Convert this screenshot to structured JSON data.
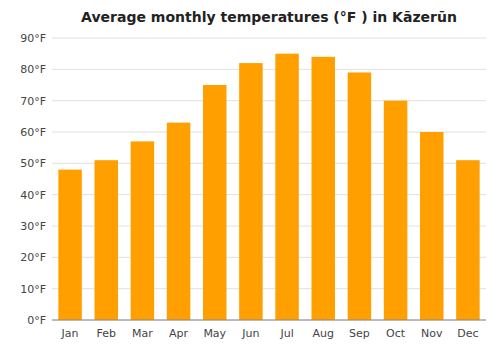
{
  "chart_data": {
    "type": "bar",
    "title": "Average monthly temperatures (°F ) in Kāzerūn",
    "categories": [
      "Jan",
      "Feb",
      "Mar",
      "Apr",
      "May",
      "Jun",
      "Jul",
      "Aug",
      "Sep",
      "Oct",
      "Nov",
      "Dec"
    ],
    "values": [
      48,
      51,
      57,
      63,
      75,
      82,
      85,
      84,
      79,
      70,
      60,
      51
    ],
    "color": "#ffa000",
    "ylim": [
      0,
      90
    ],
    "yticks": [
      {
        "value": 0,
        "label": "0°F"
      },
      {
        "value": 10,
        "label": "10°F"
      },
      {
        "value": 20,
        "label": "20°F"
      },
      {
        "value": 30,
        "label": "30°F"
      },
      {
        "value": 40,
        "label": "40°F"
      },
      {
        "value": 50,
        "label": "50°F"
      },
      {
        "value": 60,
        "label": "60°F"
      },
      {
        "value": 70,
        "label": "70°F"
      },
      {
        "value": 80,
        "label": "80°F"
      },
      {
        "value": 90,
        "label": "90°F"
      }
    ],
    "grid": true
  }
}
